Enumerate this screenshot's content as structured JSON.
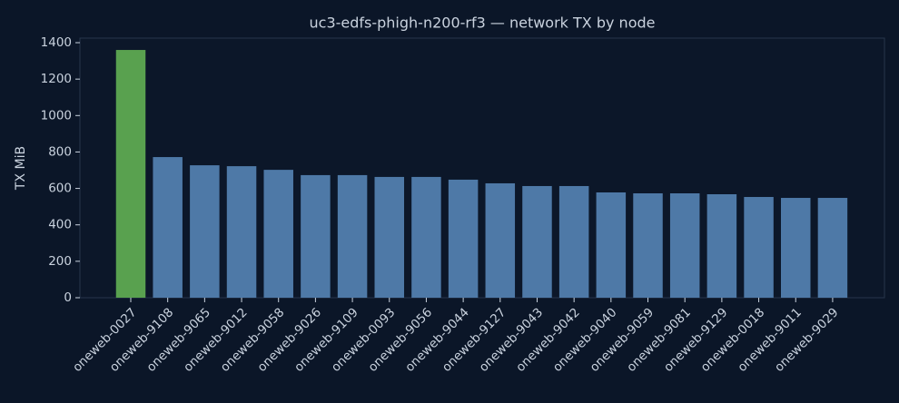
{
  "chart_data": {
    "type": "bar",
    "title": "uc3-edfs-phigh-n200-rf3 — network TX by node",
    "y_label": "TX MiB",
    "categories": [
      "oneweb-0027",
      "oneweb-9108",
      "oneweb-9065",
      "oneweb-9012",
      "oneweb-9058",
      "oneweb-9026",
      "oneweb-9109",
      "oneweb-0093",
      "oneweb-9056",
      "oneweb-9044",
      "oneweb-9127",
      "oneweb-9043",
      "oneweb-9042",
      "oneweb-9040",
      "oneweb-9059",
      "oneweb-9081",
      "oneweb-9129",
      "oneweb-0018",
      "oneweb-9011",
      "oneweb-9029"
    ],
    "values": [
      1360,
      772,
      727,
      722,
      702,
      673,
      673,
      663,
      663,
      648,
      628,
      613,
      613,
      578,
      573,
      573,
      568,
      553,
      548,
      548
    ],
    "colors": [
      "#59a14f",
      "#4e79a7",
      "#4e79a7",
      "#4e79a7",
      "#4e79a7",
      "#4e79a7",
      "#4e79a7",
      "#4e79a7",
      "#4e79a7",
      "#4e79a7",
      "#4e79a7",
      "#4e79a7",
      "#4e79a7",
      "#4e79a7",
      "#4e79a7",
      "#4e79a7",
      "#4e79a7",
      "#4e79a7",
      "#4e79a7",
      "#4e79a7"
    ],
    "ylim": [
      0,
      1425
    ],
    "yticks": [
      0,
      200,
      400,
      600,
      800,
      1000,
      1200,
      1400
    ],
    "grid": false
  }
}
